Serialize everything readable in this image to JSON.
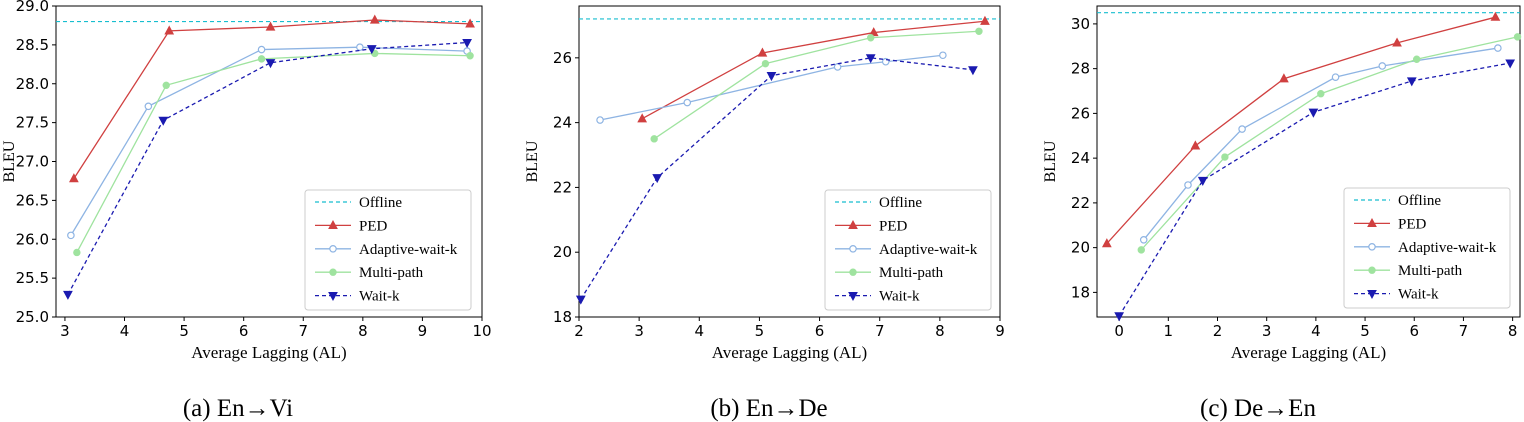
{
  "chart_data": [
    {
      "type": "line",
      "caption": "(a) En→Vi",
      "xlabel": "Average Lagging (AL)",
      "ylabel": "BLEU",
      "xlim": [
        2.85,
        10.0
      ],
      "ylim": [
        25.0,
        29.0
      ],
      "xticks": [
        "3",
        "4",
        "5",
        "6",
        "7",
        "8",
        "9",
        "10"
      ],
      "yticks": [
        "25.0",
        "25.5",
        "26.0",
        "26.5",
        "27.0",
        "27.5",
        "28.0",
        "28.5",
        "29.0"
      ],
      "offline": 28.8,
      "series": [
        {
          "name": "PED",
          "color": "#d04040",
          "marker": "triangle",
          "dash": "solid",
          "x": [
            3.15,
            4.75,
            6.45,
            8.2,
            9.8
          ],
          "y": [
            26.78,
            28.68,
            28.73,
            28.82,
            28.77
          ]
        },
        {
          "name": "Adaptive-wait-k",
          "color": "#8eb4e3",
          "marker": "circle-open",
          "dash": "solid",
          "x": [
            3.1,
            4.4,
            6.3,
            7.95,
            9.75
          ],
          "y": [
            26.05,
            27.71,
            28.44,
            28.47,
            28.42
          ]
        },
        {
          "name": "Multi-path",
          "color": "#9fe39f",
          "marker": "circle",
          "dash": "solid",
          "x": [
            3.2,
            4.7,
            6.3,
            8.2,
            9.8
          ],
          "y": [
            25.83,
            27.98,
            28.32,
            28.39,
            28.36
          ]
        },
        {
          "name": "Wait-k",
          "color": "#1a1ab0",
          "marker": "tri-down",
          "dash": "dashed",
          "x": [
            3.05,
            4.65,
            6.45,
            8.15,
            9.75
          ],
          "y": [
            25.29,
            27.53,
            28.27,
            28.45,
            28.53
          ]
        }
      ],
      "legend": [
        "Offline",
        "PED",
        "Adaptive-wait-k",
        "Multi-path",
        "Wait-k"
      ]
    },
    {
      "type": "line",
      "caption": "(b) En→De",
      "xlabel": "Average Lagging (AL)",
      "ylabel": "BLEU",
      "xlim": [
        2.0,
        9.0
      ],
      "ylim": [
        18.0,
        27.6
      ],
      "xticks": [
        "2",
        "3",
        "4",
        "5",
        "6",
        "7",
        "8",
        "9"
      ],
      "yticks": [
        "18",
        "20",
        "22",
        "24",
        "26"
      ],
      "offline": 27.2,
      "series": [
        {
          "name": "PED",
          "color": "#d04040",
          "marker": "triangle",
          "dash": "solid",
          "x": [
            3.05,
            5.05,
            6.9,
            8.75
          ],
          "y": [
            24.12,
            26.15,
            26.78,
            27.13
          ]
        },
        {
          "name": "Adaptive-wait-k",
          "color": "#8eb4e3",
          "marker": "circle-open",
          "dash": "solid",
          "x": [
            2.35,
            3.8,
            6.3,
            7.1,
            8.05
          ],
          "y": [
            24.08,
            24.62,
            25.72,
            25.88,
            26.08
          ]
        },
        {
          "name": "Multi-path",
          "color": "#9fe39f",
          "marker": "circle",
          "dash": "solid",
          "x": [
            3.25,
            5.1,
            6.85,
            8.65
          ],
          "y": [
            23.5,
            25.82,
            26.62,
            26.82
          ]
        },
        {
          "name": "Wait-k",
          "color": "#1a1ab0",
          "marker": "tri-down",
          "dash": "dashed",
          "x": [
            2.03,
            3.3,
            5.2,
            6.85,
            8.55
          ],
          "y": [
            18.55,
            22.3,
            25.45,
            26.0,
            25.63
          ]
        }
      ],
      "legend": [
        "Offline",
        "PED",
        "Adaptive-wait-k",
        "Multi-path",
        "Wait-k"
      ]
    },
    {
      "type": "line",
      "caption": "(c) De→En",
      "xlabel": "Average Lagging (AL)",
      "ylabel": "BLEU",
      "xlim": [
        -0.45,
        8.15
      ],
      "ylim": [
        16.9,
        30.8
      ],
      "xticks": [
        "0",
        "1",
        "2",
        "3",
        "4",
        "5",
        "6",
        "7",
        "8"
      ],
      "yticks": [
        "18",
        "20",
        "22",
        "24",
        "26",
        "28",
        "30"
      ],
      "offline": 30.5,
      "series": [
        {
          "name": "PED",
          "color": "#d04040",
          "marker": "triangle",
          "dash": "solid",
          "x": [
            -0.25,
            1.55,
            3.35,
            5.65,
            7.65
          ],
          "y": [
            20.18,
            24.55,
            27.55,
            29.15,
            30.3
          ]
        },
        {
          "name": "Adaptive-wait-k",
          "color": "#8eb4e3",
          "marker": "circle-open",
          "dash": "solid",
          "x": [
            0.5,
            1.4,
            2.5,
            4.4,
            5.35,
            7.7
          ],
          "y": [
            20.35,
            22.8,
            25.3,
            27.62,
            28.12,
            28.92
          ]
        },
        {
          "name": "Multi-path",
          "color": "#9fe39f",
          "marker": "circle",
          "dash": "solid",
          "x": [
            0.45,
            2.15,
            4.1,
            6.05,
            8.1
          ],
          "y": [
            19.9,
            24.05,
            26.88,
            28.42,
            29.42
          ]
        },
        {
          "name": "Wait-k",
          "color": "#1a1ab0",
          "marker": "tri-down",
          "dash": "dashed",
          "x": [
            0.0,
            1.7,
            3.95,
            5.95,
            7.95
          ],
          "y": [
            16.95,
            23.0,
            26.05,
            27.45,
            28.25
          ]
        }
      ],
      "legend": [
        "Offline",
        "PED",
        "Adaptive-wait-k",
        "Multi-path",
        "Wait-k"
      ]
    }
  ],
  "offline_color": "#17becf"
}
